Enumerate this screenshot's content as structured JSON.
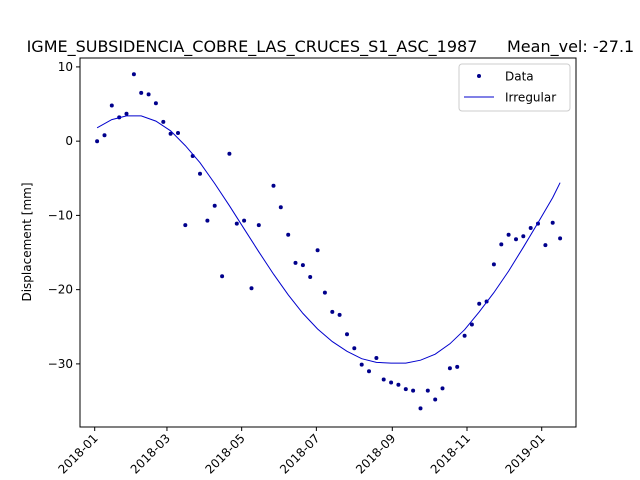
{
  "chart_data": {
    "type": "scatter",
    "title": "IGME_SUBSIDENCIA_COBRE_LAS_CRUCES_S1_ASC_1987",
    "subtitle": "Mean_vel: -27.1",
    "xlabel": "",
    "ylabel": "Displacement [mm]",
    "xlim": [
      "2017-12-20",
      "2019-01-29"
    ],
    "ylim": [
      -38.5,
      11.2
    ],
    "xticks": [
      "2018-01",
      "2018-03",
      "2018-05",
      "2018-07",
      "2018-09",
      "2018-11",
      "2019-01"
    ],
    "yticks": [
      10,
      0,
      -10,
      -20,
      -30
    ],
    "ytick_labels": [
      "10",
      "0",
      "−10",
      "−20",
      "−30"
    ],
    "grid": false,
    "legend_position": "upper right",
    "series": [
      {
        "name": "Data",
        "kind": "scatter",
        "color": "#00008b",
        "points": [
          [
            "2018-01-03",
            0.0
          ],
          [
            "2018-01-09",
            0.8
          ],
          [
            "2018-01-15",
            4.8
          ],
          [
            "2018-01-21",
            3.2
          ],
          [
            "2018-01-27",
            3.7
          ],
          [
            "2018-02-02",
            9.0
          ],
          [
            "2018-02-08",
            6.5
          ],
          [
            "2018-02-14",
            6.3
          ],
          [
            "2018-02-20",
            5.1
          ],
          [
            "2018-02-26",
            2.6
          ],
          [
            "2018-03-04",
            1.0
          ],
          [
            "2018-03-10",
            1.1
          ],
          [
            "2018-03-16",
            -11.3
          ],
          [
            "2018-03-22",
            -2.0
          ],
          [
            "2018-03-28",
            -4.4
          ],
          [
            "2018-04-03",
            -10.7
          ],
          [
            "2018-04-09",
            -8.7
          ],
          [
            "2018-04-15",
            -18.2
          ],
          [
            "2018-04-21",
            -1.7
          ],
          [
            "2018-04-27",
            -11.1
          ],
          [
            "2018-05-03",
            -10.7
          ],
          [
            "2018-05-09",
            -19.8
          ],
          [
            "2018-05-15",
            -11.3
          ],
          [
            "2018-05-27",
            -6.0
          ],
          [
            "2018-06-02",
            -8.9
          ],
          [
            "2018-06-08",
            -12.6
          ],
          [
            "2018-06-14",
            -16.4
          ],
          [
            "2018-06-20",
            -16.7
          ],
          [
            "2018-06-26",
            -18.3
          ],
          [
            "2018-07-02",
            -14.7
          ],
          [
            "2018-07-08",
            -20.4
          ],
          [
            "2018-07-14",
            -23.0
          ],
          [
            "2018-07-20",
            -23.4
          ],
          [
            "2018-07-26",
            -26.0
          ],
          [
            "2018-08-01",
            -27.9
          ],
          [
            "2018-08-07",
            -30.1
          ],
          [
            "2018-08-13",
            -31.0
          ],
          [
            "2018-08-19",
            -29.2
          ],
          [
            "2018-08-25",
            -32.1
          ],
          [
            "2018-08-31",
            -32.5
          ],
          [
            "2018-09-06",
            -32.8
          ],
          [
            "2018-09-12",
            -33.4
          ],
          [
            "2018-09-18",
            -33.6
          ],
          [
            "2018-09-24",
            -36.0
          ],
          [
            "2018-09-30",
            -33.6
          ],
          [
            "2018-10-06",
            -34.8
          ],
          [
            "2018-10-12",
            -33.3
          ],
          [
            "2018-10-18",
            -30.6
          ],
          [
            "2018-10-24",
            -30.4
          ],
          [
            "2018-10-30",
            -26.2
          ],
          [
            "2018-11-05",
            -24.7
          ],
          [
            "2018-11-11",
            -21.9
          ],
          [
            "2018-11-17",
            -21.6
          ],
          [
            "2018-11-23",
            -16.6
          ],
          [
            "2018-11-29",
            -13.9
          ],
          [
            "2018-12-05",
            -12.6
          ],
          [
            "2018-12-11",
            -13.2
          ],
          [
            "2018-12-17",
            -12.8
          ],
          [
            "2018-12-23",
            -11.7
          ],
          [
            "2018-12-29",
            -11.1
          ],
          [
            "2019-01-04",
            -14.0
          ],
          [
            "2019-01-10",
            -11.0
          ],
          [
            "2019-01-16",
            -13.1
          ]
        ]
      },
      {
        "name": "Irregular",
        "kind": "line",
        "color": "#0000cd",
        "points": [
          [
            "2018-01-03",
            1.8
          ],
          [
            "2018-01-15",
            2.9
          ],
          [
            "2018-01-27",
            3.4
          ],
          [
            "2018-02-08",
            3.4
          ],
          [
            "2018-02-20",
            2.7
          ],
          [
            "2018-03-04",
            1.4
          ],
          [
            "2018-03-16",
            -0.6
          ],
          [
            "2018-03-28",
            -2.9
          ],
          [
            "2018-04-09",
            -5.7
          ],
          [
            "2018-04-21",
            -8.7
          ],
          [
            "2018-05-03",
            -11.8
          ],
          [
            "2018-05-15",
            -14.9
          ],
          [
            "2018-05-27",
            -17.9
          ],
          [
            "2018-06-08",
            -20.7
          ],
          [
            "2018-06-20",
            -23.2
          ],
          [
            "2018-07-02",
            -25.3
          ],
          [
            "2018-07-14",
            -27.0
          ],
          [
            "2018-07-26",
            -28.3
          ],
          [
            "2018-08-07",
            -29.3
          ],
          [
            "2018-08-19",
            -29.8
          ],
          [
            "2018-08-31",
            -29.9
          ],
          [
            "2018-09-12",
            -29.9
          ],
          [
            "2018-09-24",
            -29.5
          ],
          [
            "2018-10-06",
            -28.7
          ],
          [
            "2018-10-18",
            -27.3
          ],
          [
            "2018-10-30",
            -25.4
          ],
          [
            "2018-11-11",
            -23.0
          ],
          [
            "2018-11-23",
            -20.4
          ],
          [
            "2018-12-05",
            -17.5
          ],
          [
            "2018-12-17",
            -14.3
          ],
          [
            "2018-12-29",
            -11.0
          ],
          [
            "2019-01-10",
            -7.6
          ],
          [
            "2019-01-16",
            -5.6
          ]
        ]
      }
    ]
  }
}
